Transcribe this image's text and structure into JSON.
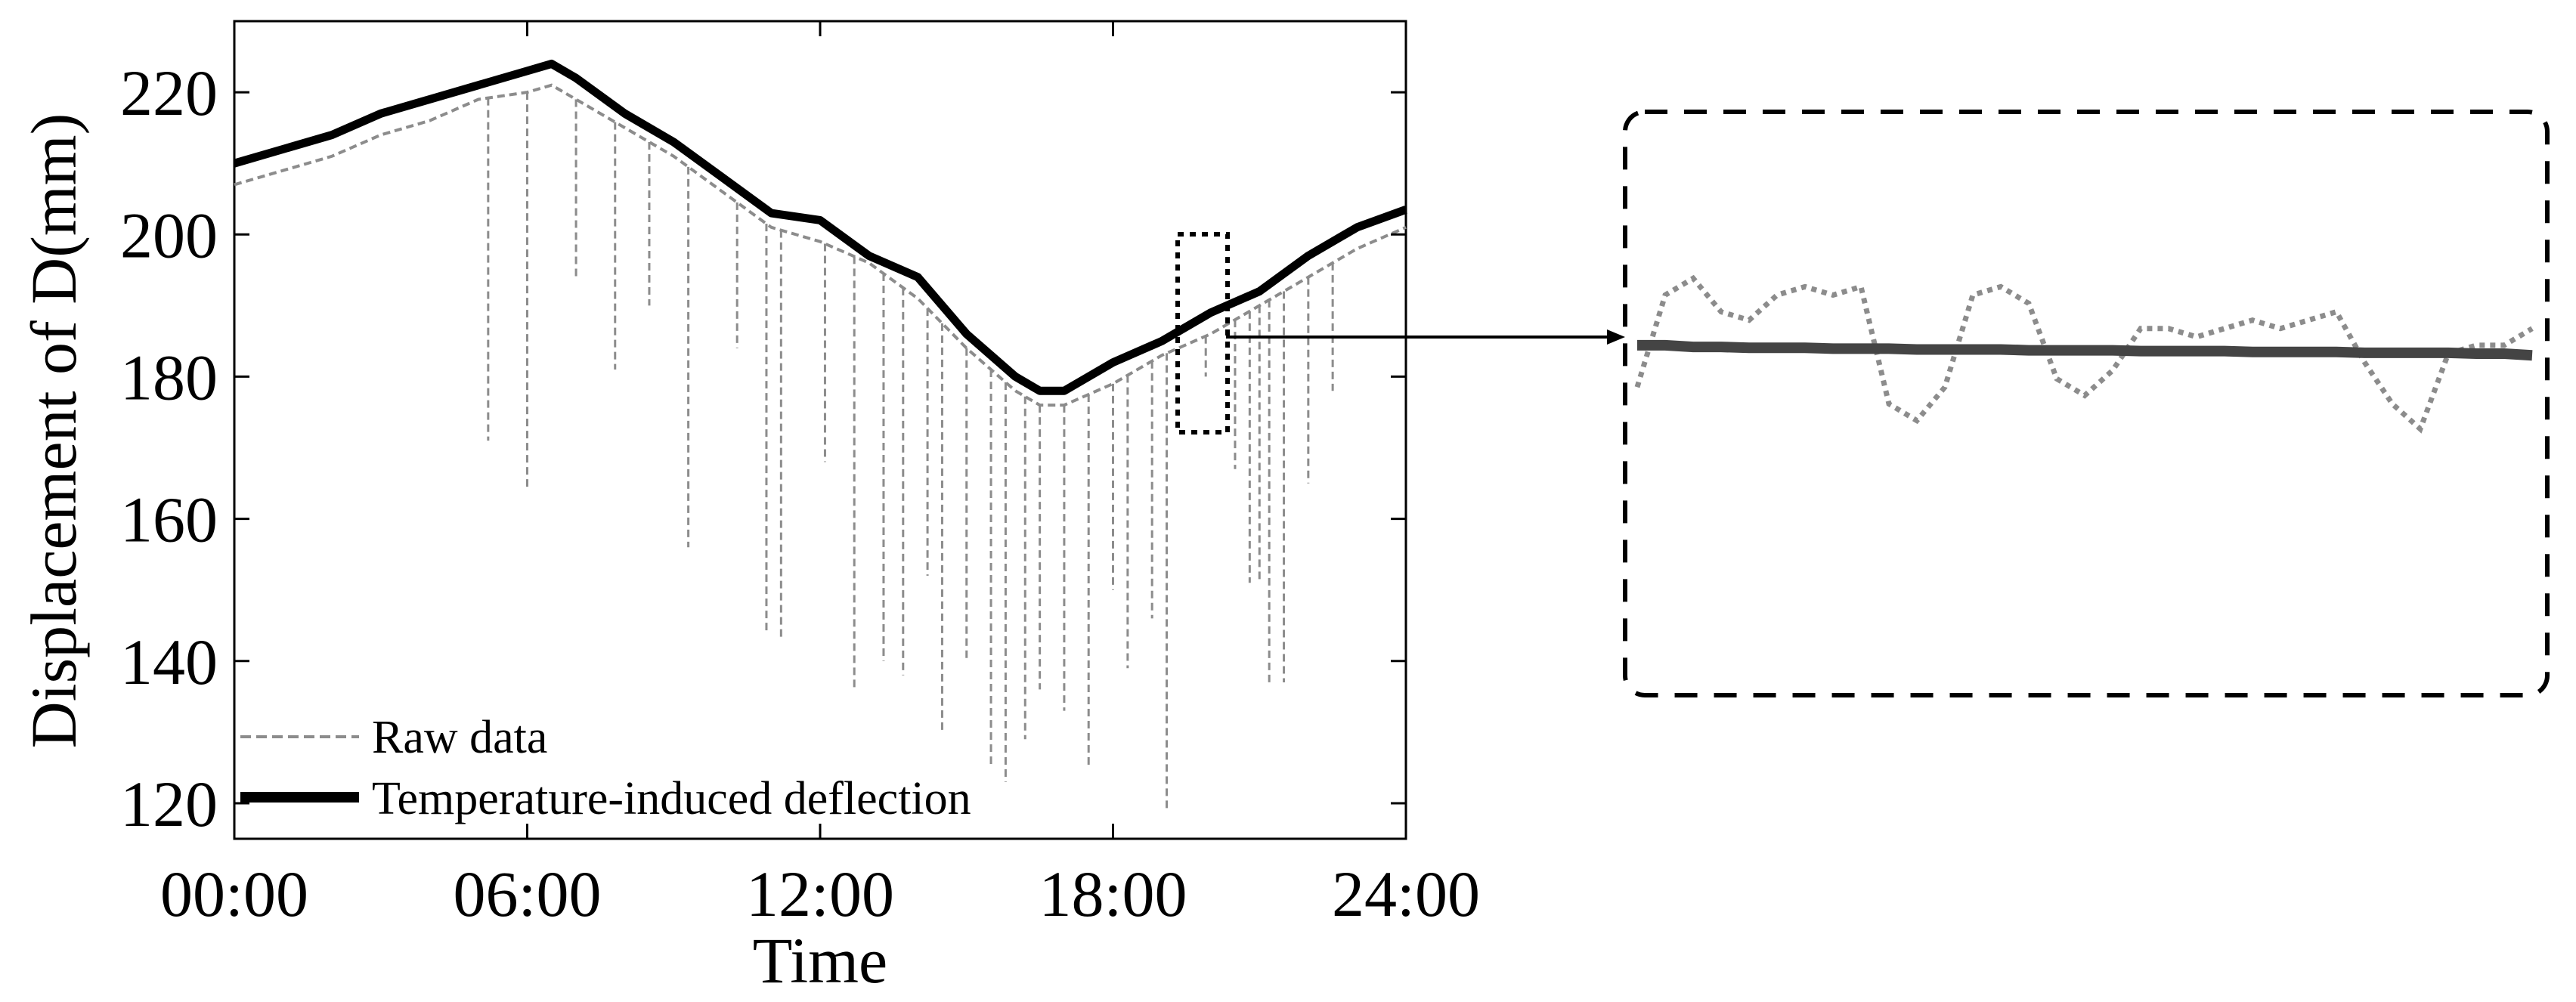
{
  "chart_data": {
    "type": "line",
    "xlabel": "Time",
    "ylabel": "Displacement of D(mm)",
    "xlim": [
      0,
      24
    ],
    "ylim": [
      115,
      230
    ],
    "x_tick_labels": [
      "00:00",
      "06:00",
      "12:00",
      "18:00",
      "24:00"
    ],
    "x_tick_values": [
      0,
      6,
      12,
      18,
      24
    ],
    "y_tick_labels": [
      "120",
      "140",
      "160",
      "180",
      "200",
      "220"
    ],
    "y_tick_values": [
      120,
      140,
      160,
      180,
      200,
      220
    ],
    "grid": false,
    "legend_position": "bottom-left",
    "series": [
      {
        "name": "Raw data",
        "style": "dashed",
        "color": "#8c8c8c",
        "x": [
          0,
          1,
          2,
          3,
          4,
          5,
          6,
          6.5,
          7,
          8,
          9,
          10,
          11,
          12,
          13,
          14,
          15,
          16,
          16.5,
          17,
          18,
          19,
          20,
          21,
          22,
          23,
          24
        ],
        "y": [
          207,
          209,
          211,
          214,
          216,
          219,
          220,
          221,
          219,
          215,
          211,
          206,
          201,
          199,
          196,
          191,
          184,
          178,
          176,
          176,
          179,
          183,
          186,
          190,
          194,
          198,
          201
        ],
        "spikes": [
          {
            "x": 5.2,
            "y": 171
          },
          {
            "x": 6.0,
            "y": 164
          },
          {
            "x": 7.0,
            "y": 194
          },
          {
            "x": 7.8,
            "y": 181
          },
          {
            "x": 8.5,
            "y": 190
          },
          {
            "x": 9.3,
            "y": 156
          },
          {
            "x": 10.3,
            "y": 184
          },
          {
            "x": 10.9,
            "y": 144
          },
          {
            "x": 11.2,
            "y": 143
          },
          {
            "x": 12.1,
            "y": 168
          },
          {
            "x": 12.7,
            "y": 136
          },
          {
            "x": 13.3,
            "y": 140
          },
          {
            "x": 13.7,
            "y": 138
          },
          {
            "x": 14.2,
            "y": 152
          },
          {
            "x": 14.5,
            "y": 130
          },
          {
            "x": 15.0,
            "y": 140
          },
          {
            "x": 15.5,
            "y": 125
          },
          {
            "x": 15.8,
            "y": 123
          },
          {
            "x": 16.2,
            "y": 129
          },
          {
            "x": 16.5,
            "y": 136
          },
          {
            "x": 17.0,
            "y": 133
          },
          {
            "x": 17.5,
            "y": 125
          },
          {
            "x": 18.0,
            "y": 150
          },
          {
            "x": 18.3,
            "y": 139
          },
          {
            "x": 18.8,
            "y": 146
          },
          {
            "x": 19.1,
            "y": 119
          },
          {
            "x": 19.9,
            "y": 180
          },
          {
            "x": 20.5,
            "y": 167
          },
          {
            "x": 20.8,
            "y": 151
          },
          {
            "x": 21.0,
            "y": 151
          },
          {
            "x": 21.2,
            "y": 137
          },
          {
            "x": 21.5,
            "y": 137
          },
          {
            "x": 22.0,
            "y": 165
          },
          {
            "x": 22.5,
            "y": 178
          }
        ]
      },
      {
        "name": "Temperature-induced deflection",
        "style": "solid",
        "color": "#000000",
        "x": [
          0,
          1,
          2,
          3,
          4,
          5,
          6,
          6.5,
          7,
          8,
          9,
          10,
          11,
          12,
          13,
          14,
          15,
          16,
          16.5,
          17,
          18,
          19,
          20,
          21,
          22,
          23,
          24
        ],
        "y": [
          210,
          212,
          214,
          217,
          219,
          221,
          223,
          224,
          222,
          217,
          213,
          208,
          203,
          202,
          197,
          194,
          186,
          180,
          178,
          178,
          182,
          185,
          189,
          192,
          197,
          201,
          203.5
        ]
      }
    ],
    "inset": {
      "raw_y": [
        185,
        196,
        198,
        194,
        193,
        196,
        197,
        196,
        197,
        183,
        181,
        185,
        196,
        197,
        195,
        186,
        184,
        187,
        192,
        192,
        191,
        192,
        193,
        192,
        193,
        194,
        188,
        183,
        180,
        189,
        190,
        190,
        192
      ],
      "fit_y": [
        190,
        190,
        189.8,
        189.8,
        189.7,
        189.7,
        189.7,
        189.6,
        189.6,
        189.6,
        189.5,
        189.5,
        189.5,
        189.5,
        189.4,
        189.4,
        189.4,
        189.4,
        189.3,
        189.3,
        189.3,
        189.3,
        189.2,
        189.2,
        189.2,
        189.2,
        189.1,
        189.1,
        189.1,
        189.1,
        189.0,
        189.0,
        188.8
      ]
    }
  }
}
